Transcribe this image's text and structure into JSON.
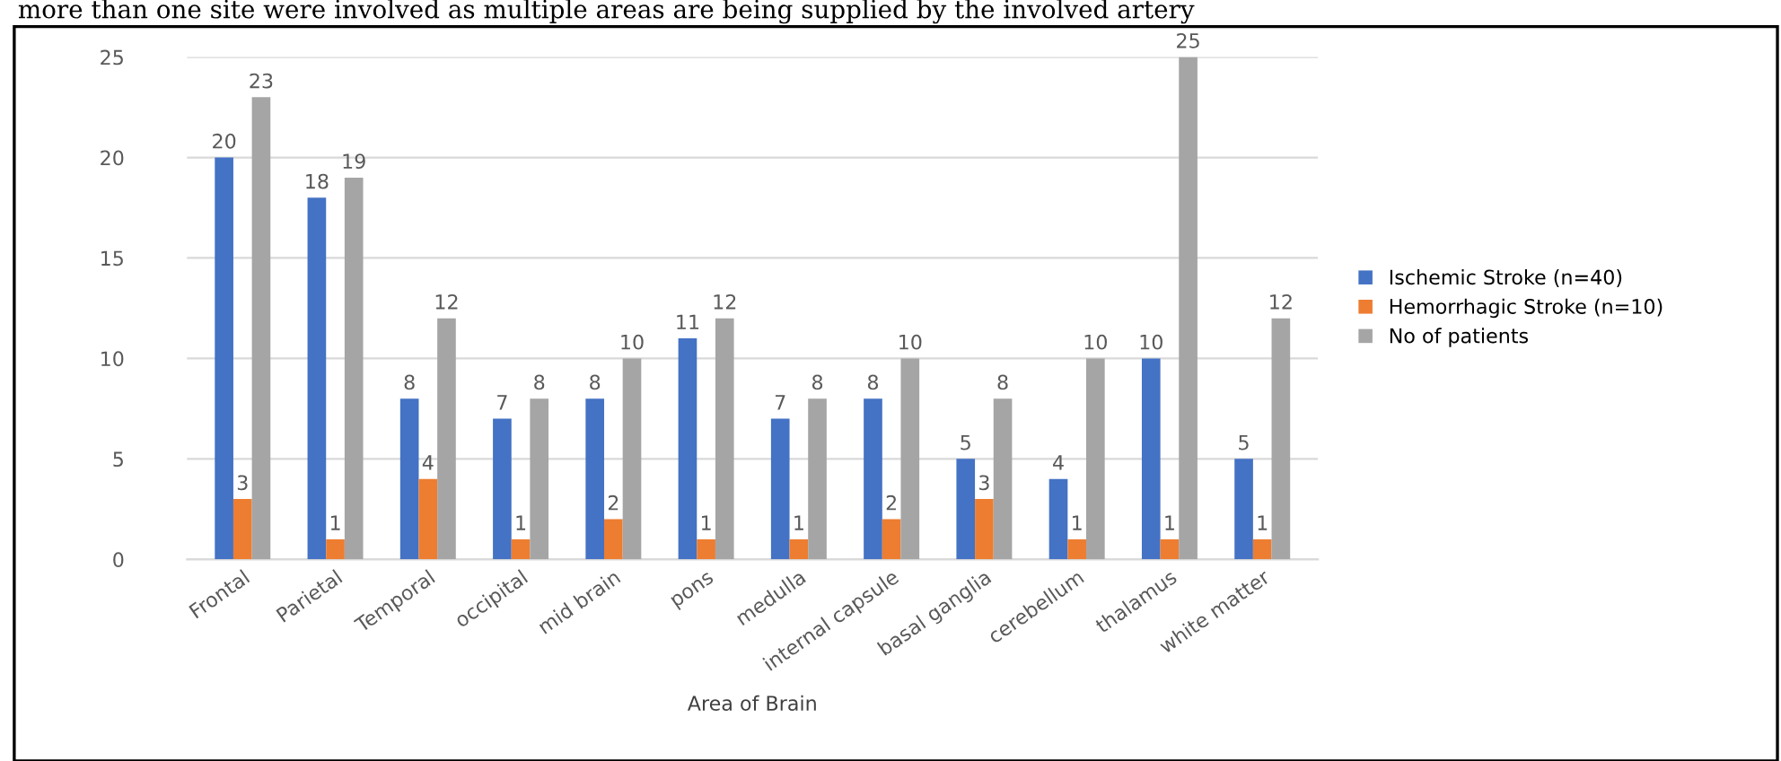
{
  "chart_data": {
    "type": "bar",
    "xlabel": "Area of Brain",
    "annotations": [
      "more than one site were involved as multiple areas are being supplied by the involved artery"
    ],
    "categories": [
      "Frontal",
      "Parietal",
      "Temporal",
      "occipital",
      "mid brain",
      "pons",
      "medulla",
      "internal capsule",
      "basal ganglia",
      "cerebellum",
      "thalamus",
      "white matter"
    ],
    "series": [
      {
        "name": "Ischemic Stroke (n=40)",
        "color": "#4472c4",
        "values": [
          20,
          18,
          8,
          7,
          8,
          11,
          7,
          8,
          5,
          4,
          10,
          5
        ]
      },
      {
        "name": "Hemorrhagic Stroke (n=10)",
        "color": "#ed7d31",
        "values": [
          3,
          1,
          4,
          1,
          2,
          1,
          1,
          2,
          3,
          1,
          1,
          1
        ]
      },
      {
        "name": "No of patients",
        "color": "#a5a5a5",
        "values": [
          23,
          19,
          12,
          8,
          10,
          12,
          8,
          10,
          8,
          10,
          25,
          12
        ]
      }
    ],
    "ylim": [
      0,
      25
    ],
    "yticks": [
      0,
      5,
      10,
      15,
      20,
      25
    ],
    "grid": "y",
    "legend": "right",
    "data_labels": true
  }
}
